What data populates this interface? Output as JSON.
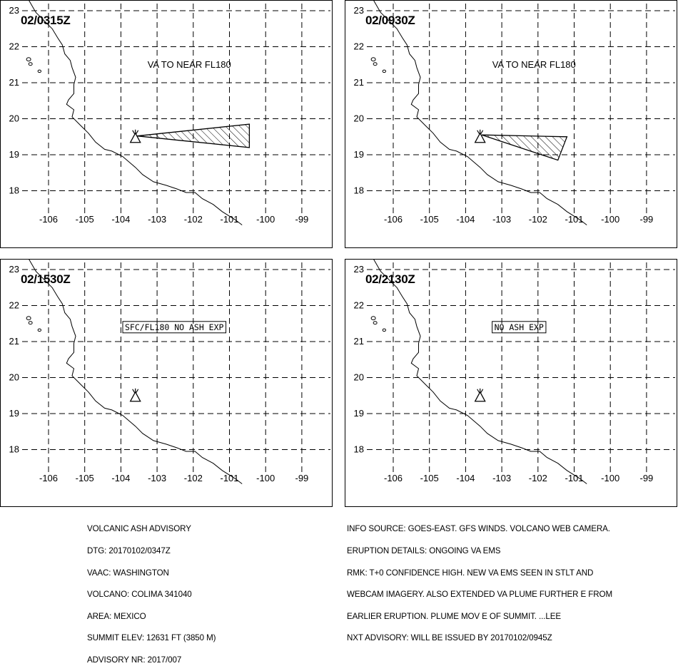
{
  "panels": [
    {
      "time": "02/0315Z",
      "label": "VA TO NEAR FL180",
      "boxed": false,
      "ash": [
        [
          -103.55,
          19.52
        ],
        [
          -100.45,
          19.85
        ],
        [
          -100.45,
          19.2
        ]
      ]
    },
    {
      "time": "02/0930Z",
      "label": "VA TO NEAR FL180",
      "boxed": false,
      "ash": [
        [
          -103.55,
          19.55
        ],
        [
          -101.2,
          19.5
        ],
        [
          -101.45,
          18.85
        ]
      ]
    },
    {
      "time": "02/1530Z",
      "label": "SFC/FL180 NO ASH EXP",
      "boxed": true,
      "ash": []
    },
    {
      "time": "02/2130Z",
      "label": "NO ASH EXP",
      "boxed": true,
      "ash": []
    }
  ],
  "axes": {
    "lon_ticks": [
      -106,
      -105,
      -104,
      -103,
      -102,
      -101,
      -100,
      -99
    ],
    "lat_ticks": [
      23,
      22,
      21,
      20,
      19,
      18
    ]
  },
  "volcano": {
    "lon": -103.6,
    "lat": 19.5
  },
  "advisory_left": [
    "VOLCANIC ASH ADVISORY",
    "DTG: 20170102/0347Z",
    "VAAC: WASHINGTON",
    "VOLCANO: COLIMA 341040",
    "AREA: MEXICO",
    "SUMMIT ELEV: 12631 FT (3850 M)",
    "ADVISORY NR: 2017/007"
  ],
  "advisory_right": [
    "INFO SOURCE: GOES-EAST. GFS WINDS. VOLCANO WEB CAMERA.",
    "ERUPTION DETAILS: ONGOING VA EMS",
    "RMK: T+0 CONFIDENCE HIGH. NEW VA EMS SEEN IN STLT AND",
    "WEBCAM IMAGERY. ALSO EXTENDED VA PLUME FURTHER E FROM",
    "EARLIER ERUPTION. PLUME MOV E OF SUMMIT. ...LEE",
    "NXT ADVISORY: WILL BE ISSUED BY 20170102/0945Z"
  ]
}
